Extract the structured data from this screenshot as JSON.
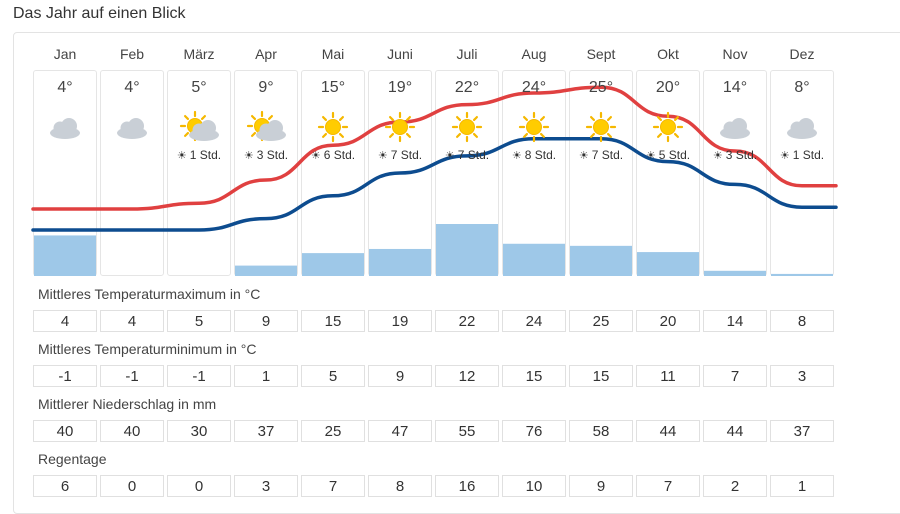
{
  "page_title": "Das Jahr auf einen Blick",
  "months": [
    "Jan",
    "Feb",
    "März",
    "Apr",
    "Mai",
    "Juni",
    "Juli",
    "Aug",
    "Sept",
    "Okt",
    "Nov",
    "Dez"
  ],
  "weather_icons": [
    "cloud-icon",
    "cloud-icon",
    "partly-sunny-icon",
    "partly-sunny-icon",
    "sun-icon",
    "sun-icon",
    "sun-icon",
    "sun-icon",
    "sun-icon",
    "sun-icon",
    "cloud-icon",
    "cloud-icon"
  ],
  "sun_hours": [
    "",
    "",
    "1 Std.",
    "3 Std.",
    "6 Std.",
    "7 Std.",
    "7 Std.",
    "8 Std.",
    "7 Std.",
    "5 Std.",
    "3 Std.",
    "1 Std."
  ],
  "colors": {
    "max": "#e04040",
    "min": "#0d4c8f",
    "precip": "#9ec8e8"
  },
  "chart_data": {
    "type": "line",
    "categories": [
      "Jan",
      "Feb",
      "März",
      "Apr",
      "Mai",
      "Juni",
      "Juli",
      "Aug",
      "Sept",
      "Okt",
      "Nov",
      "Dez"
    ],
    "series": [
      {
        "name": "Mittleres Temperaturmaximum in °C",
        "type": "line",
        "values": [
          4,
          4,
          5,
          9,
          15,
          19,
          22,
          24,
          25,
          20,
          14,
          8
        ]
      },
      {
        "name": "Mittleres Temperaturminimum in °C",
        "type": "line",
        "values": [
          -1,
          -1,
          -1,
          1,
          5,
          9,
          12,
          15,
          15,
          11,
          7,
          3
        ]
      },
      {
        "name": "Mittlerer Niederschlag in mm",
        "type": "bar",
        "values": [
          40,
          40,
          30,
          37,
          25,
          47,
          55,
          76,
          58,
          44,
          44,
          37
        ]
      },
      {
        "name": "Regentage",
        "type": "table",
        "values": [
          6,
          0,
          0,
          3,
          7,
          8,
          16,
          10,
          9,
          7,
          2,
          1
        ]
      }
    ],
    "title": "Das Jahr auf einen Blick",
    "xlabel": "",
    "ylabel": ""
  },
  "rows": [
    {
      "label": "Mittleres Temperaturmaximum in °C",
      "values": [
        "4",
        "4",
        "5",
        "9",
        "15",
        "19",
        "22",
        "24",
        "25",
        "20",
        "14",
        "8"
      ]
    },
    {
      "label": "Mittleres Temperaturminimum in °C",
      "values": [
        "-1",
        "-1",
        "-1",
        "1",
        "5",
        "9",
        "12",
        "15",
        "15",
        "11",
        "7",
        "3"
      ]
    },
    {
      "label": "Mittlerer Niederschlag in mm",
      "values": [
        "40",
        "40",
        "30",
        "37",
        "25",
        "47",
        "55",
        "76",
        "58",
        "44",
        "44",
        "37"
      ]
    },
    {
      "label": "Regentage",
      "values": [
        "6",
        "0",
        "0",
        "3",
        "7",
        "8",
        "16",
        "10",
        "9",
        "7",
        "2",
        "1"
      ]
    }
  ],
  "precip_bar_levels": [
    0.39,
    0,
    0,
    0.1,
    0.22,
    0.26,
    0.5,
    0.31,
    0.29,
    0.23,
    0.05,
    0.02
  ]
}
